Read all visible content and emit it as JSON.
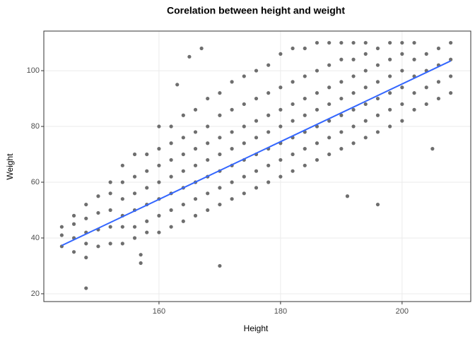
{
  "chart_data": {
    "type": "scatter",
    "title": "Corelation between height and weight",
    "x_label": "Height",
    "y_label": "Weight",
    "xlim": [
      141.05,
      211.3
    ],
    "ylim": [
      17.2,
      114.2
    ],
    "xticks": [
      160,
      180,
      200
    ],
    "yticks": [
      20,
      40,
      60,
      80,
      100
    ],
    "grid": true,
    "series": [
      {
        "color": "#6e6e6e",
        "x": [
          144,
          144,
          144,
          146,
          146,
          146,
          146,
          148,
          148,
          148,
          148,
          148,
          150,
          150,
          150,
          150,
          152,
          152,
          152,
          152,
          152,
          154,
          154,
          154,
          154,
          154,
          154,
          156,
          156,
          156,
          156,
          156,
          156,
          158,
          158,
          158,
          158,
          158,
          158,
          160,
          160,
          160,
          160,
          160,
          160,
          160,
          162,
          162,
          162,
          162,
          162,
          162,
          162,
          164,
          164,
          164,
          164,
          164,
          164,
          164,
          166,
          166,
          166,
          166,
          166,
          166,
          166,
          168,
          168,
          168,
          168,
          168,
          168,
          168,
          170,
          170,
          170,
          170,
          170,
          170,
          170,
          172,
          172,
          172,
          172,
          172,
          172,
          172,
          174,
          174,
          174,
          174,
          174,
          174,
          174,
          176,
          176,
          176,
          176,
          176,
          176,
          176,
          178,
          178,
          178,
          178,
          178,
          178,
          178,
          180,
          180,
          180,
          180,
          180,
          180,
          180,
          182,
          182,
          182,
          182,
          182,
          182,
          182,
          184,
          184,
          184,
          184,
          184,
          184,
          184,
          186,
          186,
          186,
          186,
          186,
          186,
          186,
          188,
          188,
          188,
          188,
          188,
          188,
          188,
          190,
          190,
          190,
          190,
          190,
          190,
          190,
          192,
          192,
          192,
          192,
          192,
          192,
          192,
          194,
          194,
          194,
          194,
          194,
          194,
          194,
          196,
          196,
          196,
          196,
          196,
          196,
          198,
          198,
          198,
          198,
          198,
          198,
          200,
          200,
          200,
          200,
          200,
          200,
          202,
          202,
          202,
          202,
          202,
          204,
          204,
          204,
          204,
          206,
          206,
          206,
          206,
          208,
          208,
          208,
          208,
          148,
          170,
          157,
          157,
          196,
          191,
          205,
          165,
          167,
          163
        ],
        "values": [
          37,
          41,
          44,
          35,
          40,
          45,
          48,
          33,
          38,
          42,
          47,
          52,
          37,
          43,
          49,
          55,
          38,
          44,
          50,
          56,
          60,
          38,
          44,
          48,
          54,
          60,
          66,
          40,
          44,
          50,
          56,
          62,
          70,
          42,
          46,
          52,
          58,
          64,
          70,
          42,
          48,
          54,
          60,
          66,
          72,
          80,
          44,
          50,
          56,
          62,
          68,
          74,
          80,
          46,
          52,
          58,
          64,
          70,
          76,
          84,
          48,
          54,
          60,
          66,
          72,
          78,
          86,
          50,
          56,
          62,
          68,
          74,
          80,
          90,
          52,
          58,
          64,
          70,
          76,
          84,
          92,
          54,
          60,
          66,
          72,
          78,
          86,
          96,
          56,
          62,
          68,
          74,
          80,
          88,
          98,
          58,
          64,
          70,
          76,
          82,
          90,
          100,
          60,
          66,
          72,
          78,
          84,
          92,
          102,
          62,
          68,
          74,
          80,
          86,
          94,
          106,
          64,
          70,
          76,
          82,
          88,
          96,
          108,
          66,
          72,
          78,
          84,
          90,
          98,
          108,
          68,
          74,
          80,
          86,
          92,
          100,
          110,
          70,
          76,
          82,
          88,
          94,
          102,
          110,
          72,
          78,
          84,
          90,
          96,
          104,
          110,
          74,
          80,
          86,
          92,
          98,
          104,
          110,
          76,
          82,
          88,
          94,
          100,
          106,
          110,
          78,
          84,
          90,
          96,
          102,
          108,
          80,
          86,
          92,
          98,
          104,
          110,
          82,
          88,
          94,
          100,
          106,
          110,
          86,
          92,
          98,
          104,
          110,
          88,
          94,
          100,
          106,
          90,
          96,
          102,
          108,
          92,
          98,
          104,
          110,
          22,
          30,
          31,
          34,
          52,
          55,
          72,
          105,
          108,
          95
        ]
      }
    ],
    "trend": {
      "x": [
        144,
        208
      ],
      "values": [
        37.3,
        103.5
      ],
      "color": "#3366ff"
    }
  }
}
